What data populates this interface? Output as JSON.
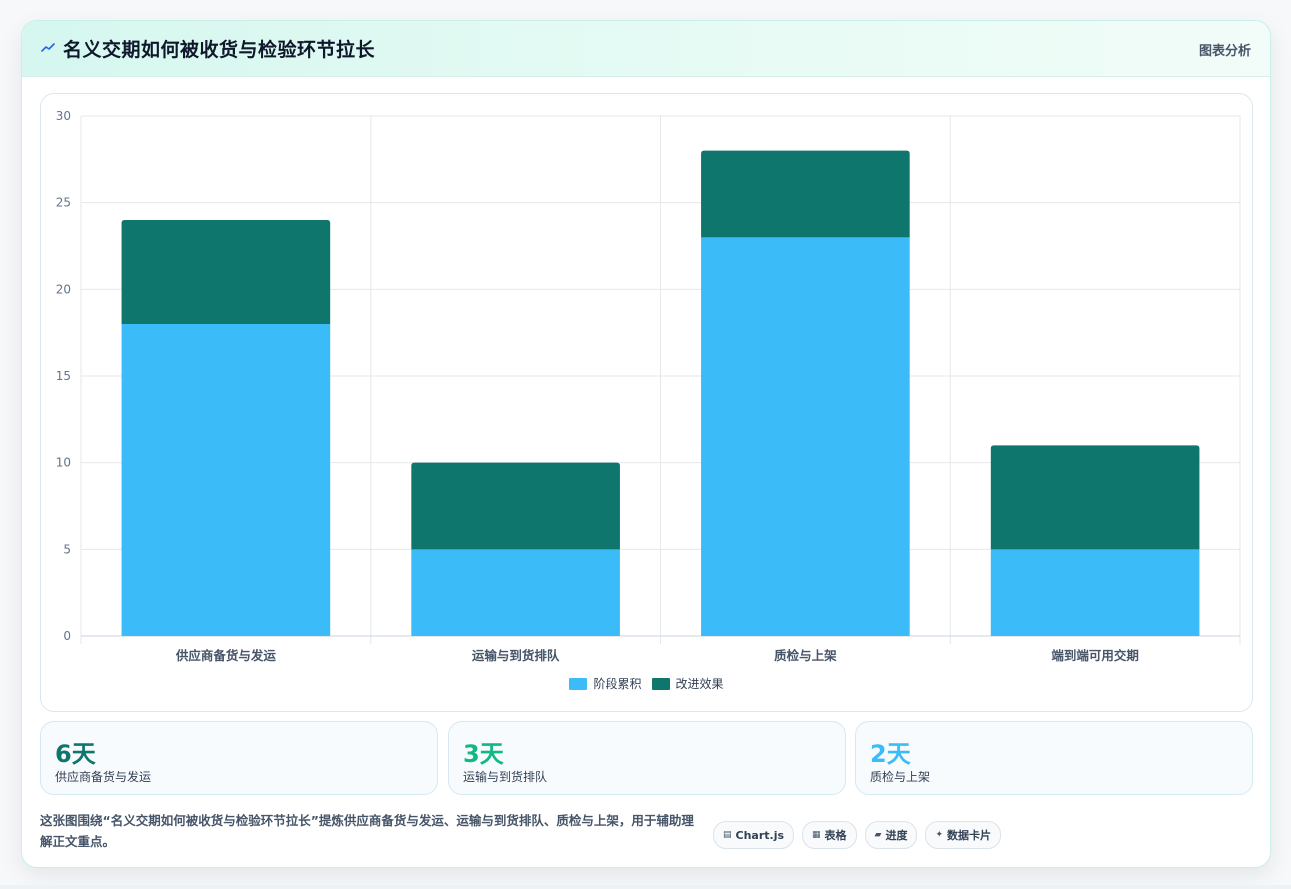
{
  "header": {
    "title": "名义交期如何被收货与检验环节拉长",
    "right_label": "图表分析"
  },
  "colors": {
    "accent_light": "#3bbcf8",
    "accent_dark": "#0f766e",
    "stat_dark": "#0f766e",
    "stat_green": "#10b981",
    "stat_blue": "#38bdf8"
  },
  "chart_data": {
    "type": "bar",
    "stacked": true,
    "categories": [
      "供应商备货与发运",
      "运输与到货排队",
      "质检与上架",
      "端到端可用交期"
    ],
    "series": [
      {
        "name": "阶段累积",
        "color": "#3bbcf8",
        "values": [
          18,
          5,
          23,
          5
        ]
      },
      {
        "name": "改进效果",
        "color": "#0f766e",
        "values": [
          6,
          5,
          5,
          6
        ]
      }
    ],
    "ylim": [
      0,
      30
    ],
    "yticks": [
      0,
      5,
      10,
      15,
      20,
      25,
      30
    ],
    "grid": true,
    "legend_position": "bottom"
  },
  "legend": {
    "items": [
      {
        "label": "阶段累积",
        "color": "#3bbcf8"
      },
      {
        "label": "改进效果",
        "color": "#0f766e"
      }
    ]
  },
  "stats": [
    {
      "value": "6天",
      "label": "供应商备货与发运",
      "color": "#0f766e"
    },
    {
      "value": "3天",
      "label": "运输与到货排队",
      "color": "#10b981"
    },
    {
      "value": "2天",
      "label": "质检与上架",
      "color": "#38bdf8"
    }
  ],
  "description": "这张图围绕“名义交期如何被收货与检验环节拉长”提炼供应商备货与发运、运输与到货排队、质检与上架，用于辅助理解正文重点。",
  "tags": [
    {
      "icon": "▤",
      "icon_name": "chart-icon",
      "label": "Chart.js"
    },
    {
      "icon": "▦",
      "icon_name": "table-icon",
      "label": "表格"
    },
    {
      "icon": "▰",
      "icon_name": "progress-icon",
      "label": "进度"
    },
    {
      "icon": "✦",
      "icon_name": "sparkle-icon",
      "label": "数据卡片"
    }
  ]
}
